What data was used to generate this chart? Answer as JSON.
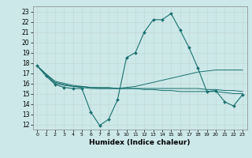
{
  "xlabel": "Humidex (Indice chaleur)",
  "background_color": "#cce8e8",
  "grid_color": "#c4d8d8",
  "line_color": "#1a7070",
  "x_ticks": [
    0,
    1,
    2,
    3,
    4,
    5,
    6,
    7,
    8,
    9,
    10,
    11,
    12,
    13,
    14,
    15,
    16,
    17,
    18,
    19,
    20,
    21,
    22,
    23
  ],
  "y_ticks": [
    12,
    13,
    14,
    15,
    16,
    17,
    18,
    19,
    20,
    21,
    22,
    23
  ],
  "xlim": [
    -0.5,
    23.5
  ],
  "ylim": [
    11.5,
    23.5
  ],
  "line1_y": [
    17.7,
    16.7,
    15.9,
    15.6,
    15.5,
    15.5,
    13.2,
    11.9,
    12.5,
    14.4,
    18.5,
    19.0,
    21.0,
    22.2,
    22.2,
    22.8,
    21.2,
    19.5,
    17.5,
    15.2,
    15.3,
    14.2,
    13.8,
    14.9
  ],
  "line2_y": [
    17.7,
    16.8,
    16.0,
    15.8,
    15.7,
    15.6,
    15.5,
    15.5,
    15.5,
    15.5,
    15.6,
    15.7,
    15.9,
    16.1,
    16.3,
    16.5,
    16.7,
    16.9,
    17.1,
    17.2,
    17.3,
    17.3,
    17.3,
    17.3
  ],
  "line3_y": [
    17.7,
    16.9,
    16.1,
    15.9,
    15.7,
    15.7,
    15.6,
    15.6,
    15.6,
    15.5,
    15.5,
    15.5,
    15.4,
    15.4,
    15.3,
    15.3,
    15.2,
    15.2,
    15.2,
    15.2,
    15.2,
    15.1,
    15.0,
    15.0
  ],
  "line4_y": [
    17.7,
    16.9,
    16.2,
    16.0,
    15.8,
    15.7,
    15.6,
    15.5,
    15.5,
    15.5,
    15.5,
    15.5,
    15.5,
    15.5,
    15.5,
    15.5,
    15.5,
    15.5,
    15.5,
    15.4,
    15.4,
    15.3,
    15.3,
    15.2
  ]
}
